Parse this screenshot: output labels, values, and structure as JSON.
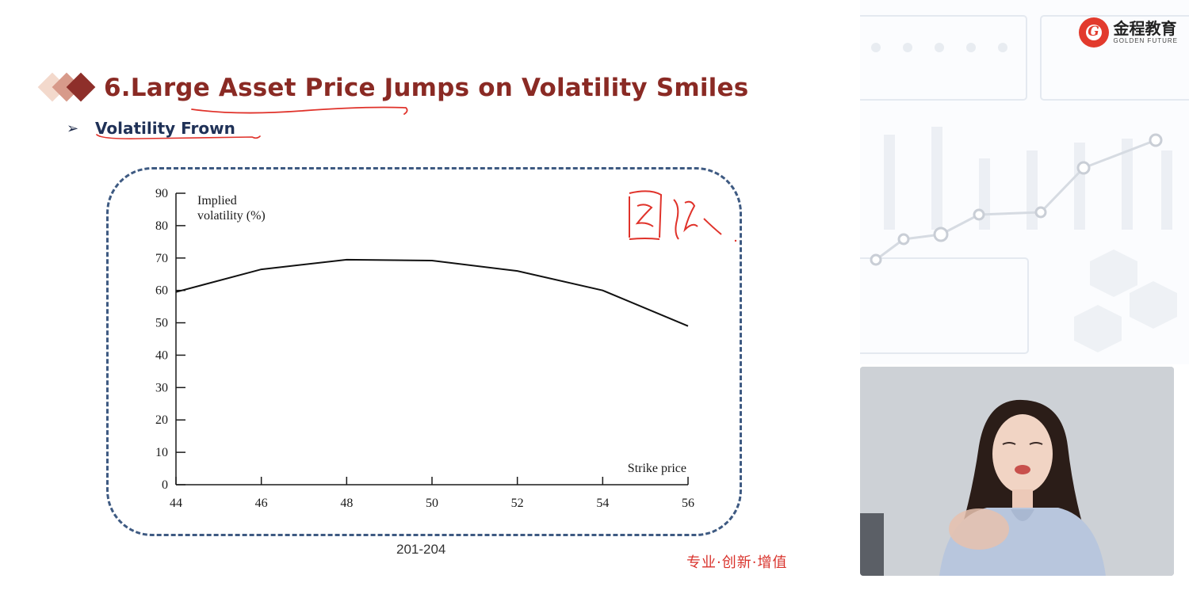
{
  "slide": {
    "title": "6.Large Asset Price Jumps on Volatility Smiles",
    "bullet": "Volatility Frown",
    "page_ref": "201-204",
    "slogan": "专业·创新·增值"
  },
  "brand": {
    "name_cn": "金程教育",
    "name_en": "GOLDEN FUTURE"
  },
  "colors": {
    "title": "#8a2a24",
    "bullet": "#1f3157",
    "dashed_box": "#3e5a82",
    "annotation_red": "#e0322a",
    "slogan": "#d9332c"
  },
  "chart_data": {
    "type": "line",
    "y_axis_title_line1": "Implied",
    "y_axis_title_line2": "volatility (%)",
    "x_axis_title": "Strike price",
    "x_ticks": [
      44,
      46,
      48,
      50,
      52,
      54,
      56
    ],
    "y_ticks": [
      0,
      10,
      20,
      30,
      40,
      50,
      60,
      70,
      80,
      90
    ],
    "xlim": [
      44,
      56
    ],
    "ylim": [
      0,
      90
    ],
    "grid": false,
    "series": [
      {
        "x": [
          44,
          46,
          48,
          50,
          52,
          54,
          56
        ],
        "y": [
          59.5,
          66.5,
          69.5,
          69.2,
          66,
          60,
          49
        ]
      }
    ]
  },
  "annotation": {
    "icon": "handwritten-red-annotation"
  }
}
